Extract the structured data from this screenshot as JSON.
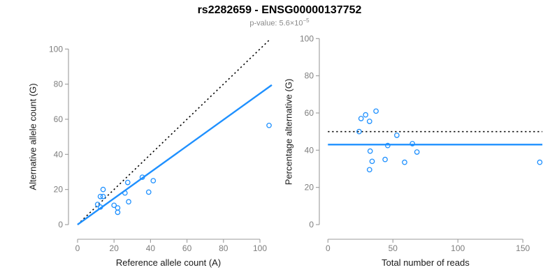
{
  "header": {
    "title": "rs2282659 - ENSG00000137752",
    "p_label": "p-value: 5.6×10",
    "p_exponent": "−5"
  },
  "colors": {
    "accent": "#1E90FF",
    "dotted_line": "#000000",
    "axis_line": "#9b9b9b",
    "tick_text": "#7d7d7d",
    "axis_title_text": "#1a1a1a",
    "title_text": "#000000",
    "subtitle_text": "#8a8a8a",
    "background": "#ffffff"
  },
  "chart_data": [
    {
      "type": "scatter",
      "title": "",
      "xlabel": "Reference allele count (A)",
      "ylabel": "Alternative allele count (G)",
      "xticks": [
        0,
        20,
        40,
        60,
        80,
        100
      ],
      "yticks": [
        0,
        20,
        40,
        60,
        80,
        100
      ],
      "xlim": [
        0,
        100
      ],
      "ylim": [
        0,
        100
      ],
      "grid": false,
      "legend": false,
      "points": [
        [
          14,
          20
        ],
        [
          12.5,
          16
        ],
        [
          14,
          16
        ],
        [
          11,
          11.5
        ],
        [
          12.5,
          10
        ],
        [
          20,
          11
        ],
        [
          22,
          9.5
        ],
        [
          22,
          7
        ],
        [
          26,
          18
        ],
        [
          27.5,
          24
        ],
        [
          28,
          13
        ],
        [
          35.5,
          27
        ],
        [
          39,
          18.5
        ],
        [
          41.5,
          25
        ],
        [
          105,
          56.5
        ]
      ],
      "lines": [
        {
          "name": "identity-line",
          "style": "dotted",
          "color": "#000000",
          "x1": 0,
          "y1": 0,
          "x2": 105,
          "y2": 105
        },
        {
          "name": "fit-line",
          "style": "solid",
          "color": "#1E90FF",
          "x1": 0,
          "y1": 0,
          "x2": 106.5,
          "y2": 79.5
        }
      ]
    },
    {
      "type": "scatter",
      "title": "",
      "xlabel": "Total number of reads",
      "ylabel": "Percentage alternative (G)",
      "xticks": [
        0,
        50,
        100,
        150
      ],
      "yticks": [
        0,
        20,
        40,
        60,
        80,
        100
      ],
      "xlim": [
        0,
        150
      ],
      "ylim": [
        0,
        100
      ],
      "grid": false,
      "legend": false,
      "points": [
        [
          24,
          50
        ],
        [
          25.5,
          57
        ],
        [
          29,
          59
        ],
        [
          32,
          55.5
        ],
        [
          37,
          61
        ],
        [
          32.5,
          39.5
        ],
        [
          32,
          29.5
        ],
        [
          34,
          34
        ],
        [
          44,
          35
        ],
        [
          46,
          42.5
        ],
        [
          53,
          48
        ],
        [
          59,
          33.5
        ],
        [
          65,
          43.5
        ],
        [
          68.5,
          39
        ],
        [
          163,
          33.5
        ]
      ],
      "lines": [
        {
          "name": "expected-50-percent-line",
          "style": "dotted",
          "color": "#000000",
          "x1": 0,
          "y1": 50,
          "x2": 165,
          "y2": 50
        },
        {
          "name": "fit-line",
          "style": "solid",
          "color": "#1E90FF",
          "x1": 0,
          "y1": 43,
          "x2": 165,
          "y2": 43
        }
      ]
    }
  ]
}
